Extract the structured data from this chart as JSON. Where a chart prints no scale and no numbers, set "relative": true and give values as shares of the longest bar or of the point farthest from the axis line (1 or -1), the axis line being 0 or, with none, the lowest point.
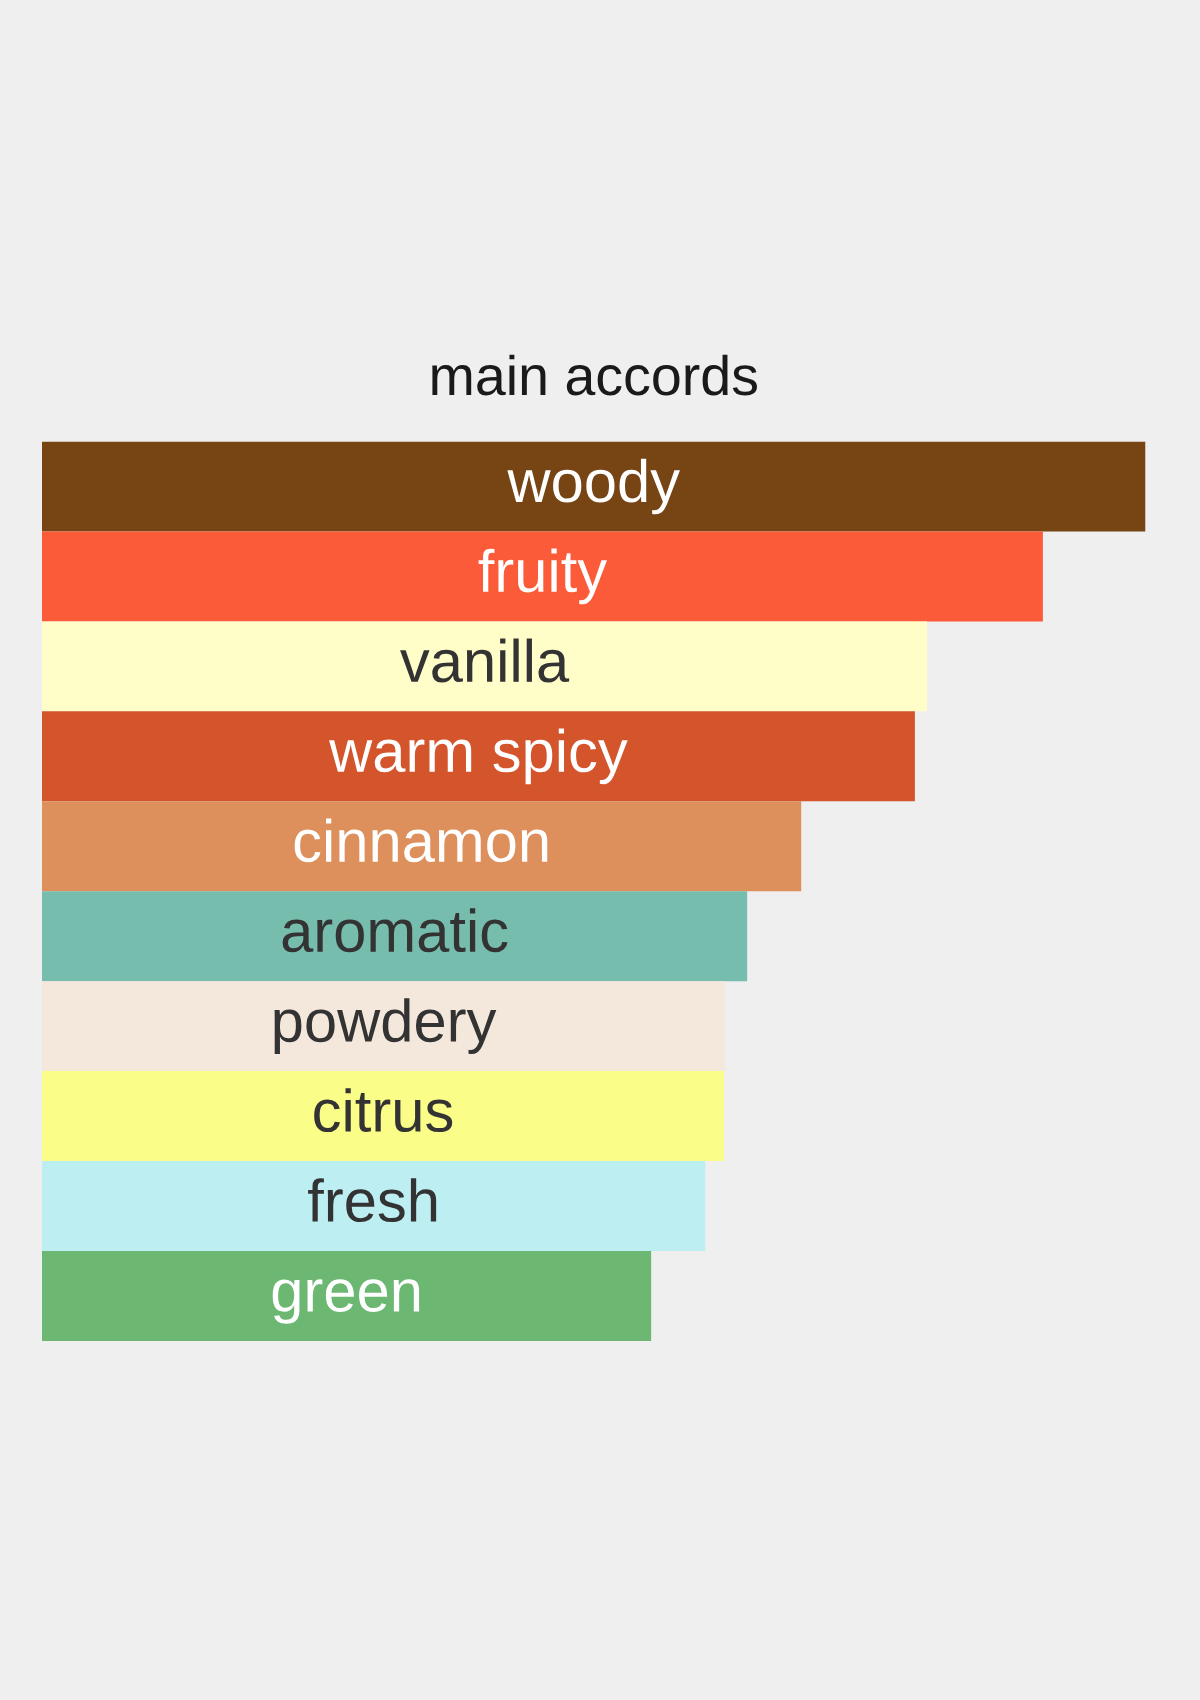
{
  "chart_data": {
    "type": "bar",
    "title": "main accords",
    "orientation": "horizontal",
    "relative": true,
    "categories": [
      "woody",
      "fruity",
      "vanilla",
      "warm spicy",
      "cinnamon",
      "aromatic",
      "powdery",
      "citrus",
      "fresh",
      "green"
    ],
    "values": [
      1,
      0.907,
      0.802,
      0.791,
      0.688,
      0.639,
      0.619,
      0.618,
      0.601,
      0.552
    ],
    "colors": [
      "#774414",
      "#fc5b3a",
      "#fffdc8",
      "#d4552c",
      "#dd905c",
      "#76bdad",
      "#f4e7dc",
      "#fafe88",
      "#bceef2",
      "#6cb873"
    ]
  }
}
